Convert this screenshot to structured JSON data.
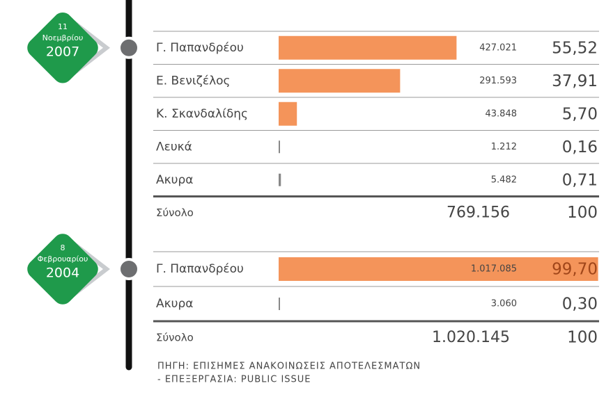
{
  "elections": [
    {
      "date": {
        "day": "11",
        "month": "Νοεμβρίου",
        "year": "2007"
      },
      "rows": [
        {
          "name": "Γ. Παπανδρέου",
          "votes": {
            "value": 427021,
            "label": "427.021"
          },
          "percent": {
            "value": 55.52,
            "label": "55,52"
          }
        },
        {
          "name": "Ε. Βενιζέλος",
          "votes": {
            "value": 291593,
            "label": "291.593"
          },
          "percent": {
            "value": 37.91,
            "label": "37,91"
          }
        },
        {
          "name": "Κ. Σκανδαλίδης",
          "votes": {
            "value": 43848,
            "label": "43.848"
          },
          "percent": {
            "value": 5.7,
            "label": "5,70"
          }
        },
        {
          "name": "Λευκά",
          "votes": {
            "value": 1212,
            "label": "1.212"
          },
          "percent": {
            "value": 0.16,
            "label": "0,16"
          }
        },
        {
          "name": "Ακυρα",
          "votes": {
            "value": 5482,
            "label": "5.482"
          },
          "percent": {
            "value": 0.71,
            "label": "0,71"
          }
        }
      ],
      "total": {
        "label": "Σύνολο",
        "votes": {
          "value": 769156,
          "label": "769.156"
        },
        "percent": 100
      }
    },
    {
      "date": {
        "day": "8",
        "month": "Φεβρουαρίου",
        "year": "2004"
      },
      "rows": [
        {
          "name": "Γ. Παπανδρέου",
          "votes": {
            "value": 1017085,
            "label": "1.017.085"
          },
          "percent": {
            "value": 99.7,
            "label": "99,70"
          }
        },
        {
          "name": "Ακυρα",
          "votes": {
            "value": 3060,
            "label": "3.060"
          },
          "percent": {
            "value": 0.3,
            "label": "0,30"
          }
        }
      ],
      "total": {
        "label": "Σύνολο",
        "votes": {
          "value": 1020145,
          "label": "1.020.145"
        },
        "percent": 100
      }
    }
  ],
  "source": [
    "ΠΗΓΗ: ΕΠΙΣΗΜΕΣ ΑΝΑΚΟΙΝΩΣΕΙΣ ΑΠΟΤΕΛΕΣΜΑΤΩΝ",
    "- ΕΠΕΞΕΡΓΑΣΙΑ: PUBLIC ISSUE"
  ]
}
